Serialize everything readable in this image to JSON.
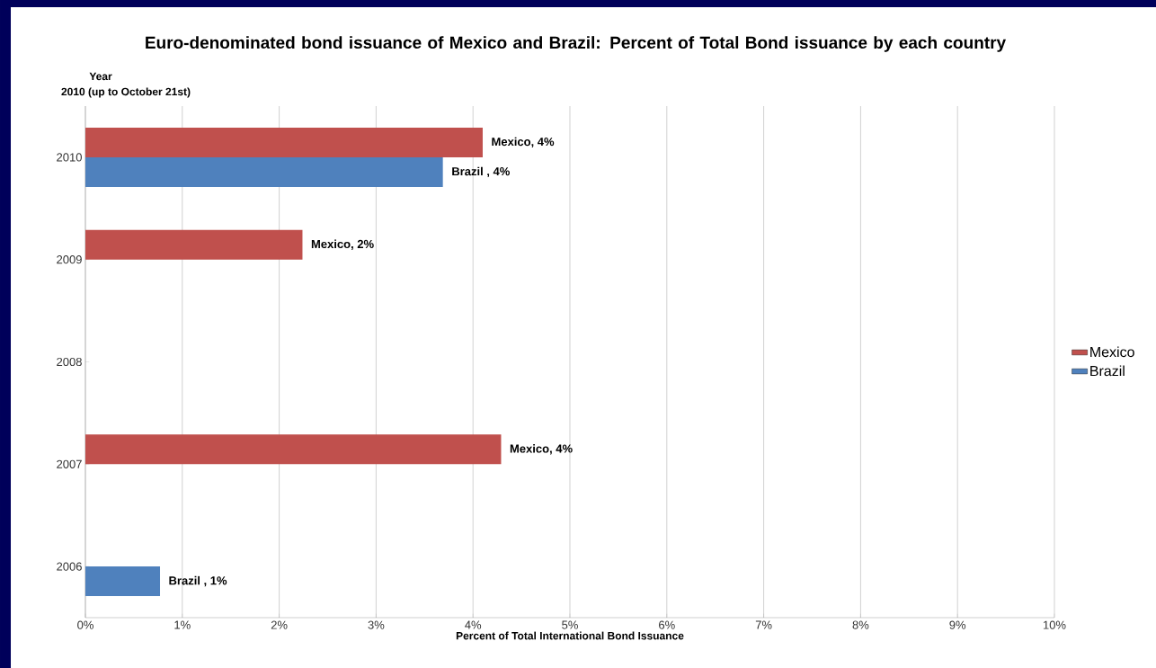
{
  "chart_data": {
    "type": "bar",
    "orientation": "horizontal",
    "title": "Euro-denominated bond issuance of Mexico and Brazil: Percent of Total Bond issuance by each country",
    "ylabel": "Year",
    "xlabel": "Percent of Total International Bond Issuance",
    "annotations": [
      "2010 (up to October 21st)"
    ],
    "categories": [
      "2010",
      "2009",
      "2008",
      "2007",
      "2006"
    ],
    "series": [
      {
        "name": "Mexico",
        "color": "#c0504d",
        "values": [
          4.1,
          2.24,
          null,
          4.29,
          null
        ],
        "value_labels": [
          "Mexico, 4%",
          "Mexico, 2%",
          null,
          "Mexico, 4%",
          null
        ]
      },
      {
        "name": "Brazil",
        "color": "#4f81bd",
        "values": [
          3.69,
          null,
          null,
          null,
          0.77
        ],
        "value_labels": [
          "Brazil , 4%",
          null,
          null,
          null,
          "Brazil , 1%"
        ]
      }
    ],
    "xlim": [
      0,
      10
    ],
    "xticks": [
      {
        "value": 0,
        "label": "0%"
      },
      {
        "value": 1,
        "label": "1%"
      },
      {
        "value": 2,
        "label": "2%"
      },
      {
        "value": 3,
        "label": "3%"
      },
      {
        "value": 4,
        "label": "4%"
      },
      {
        "value": 5,
        "label": "5%"
      },
      {
        "value": 6,
        "label": "6%"
      },
      {
        "value": 7,
        "label": "7%"
      },
      {
        "value": 8,
        "label": "8%"
      },
      {
        "value": 9,
        "label": "9%"
      },
      {
        "value": 10,
        "label": "10%"
      }
    ],
    "grid": "x",
    "legend": "right"
  }
}
